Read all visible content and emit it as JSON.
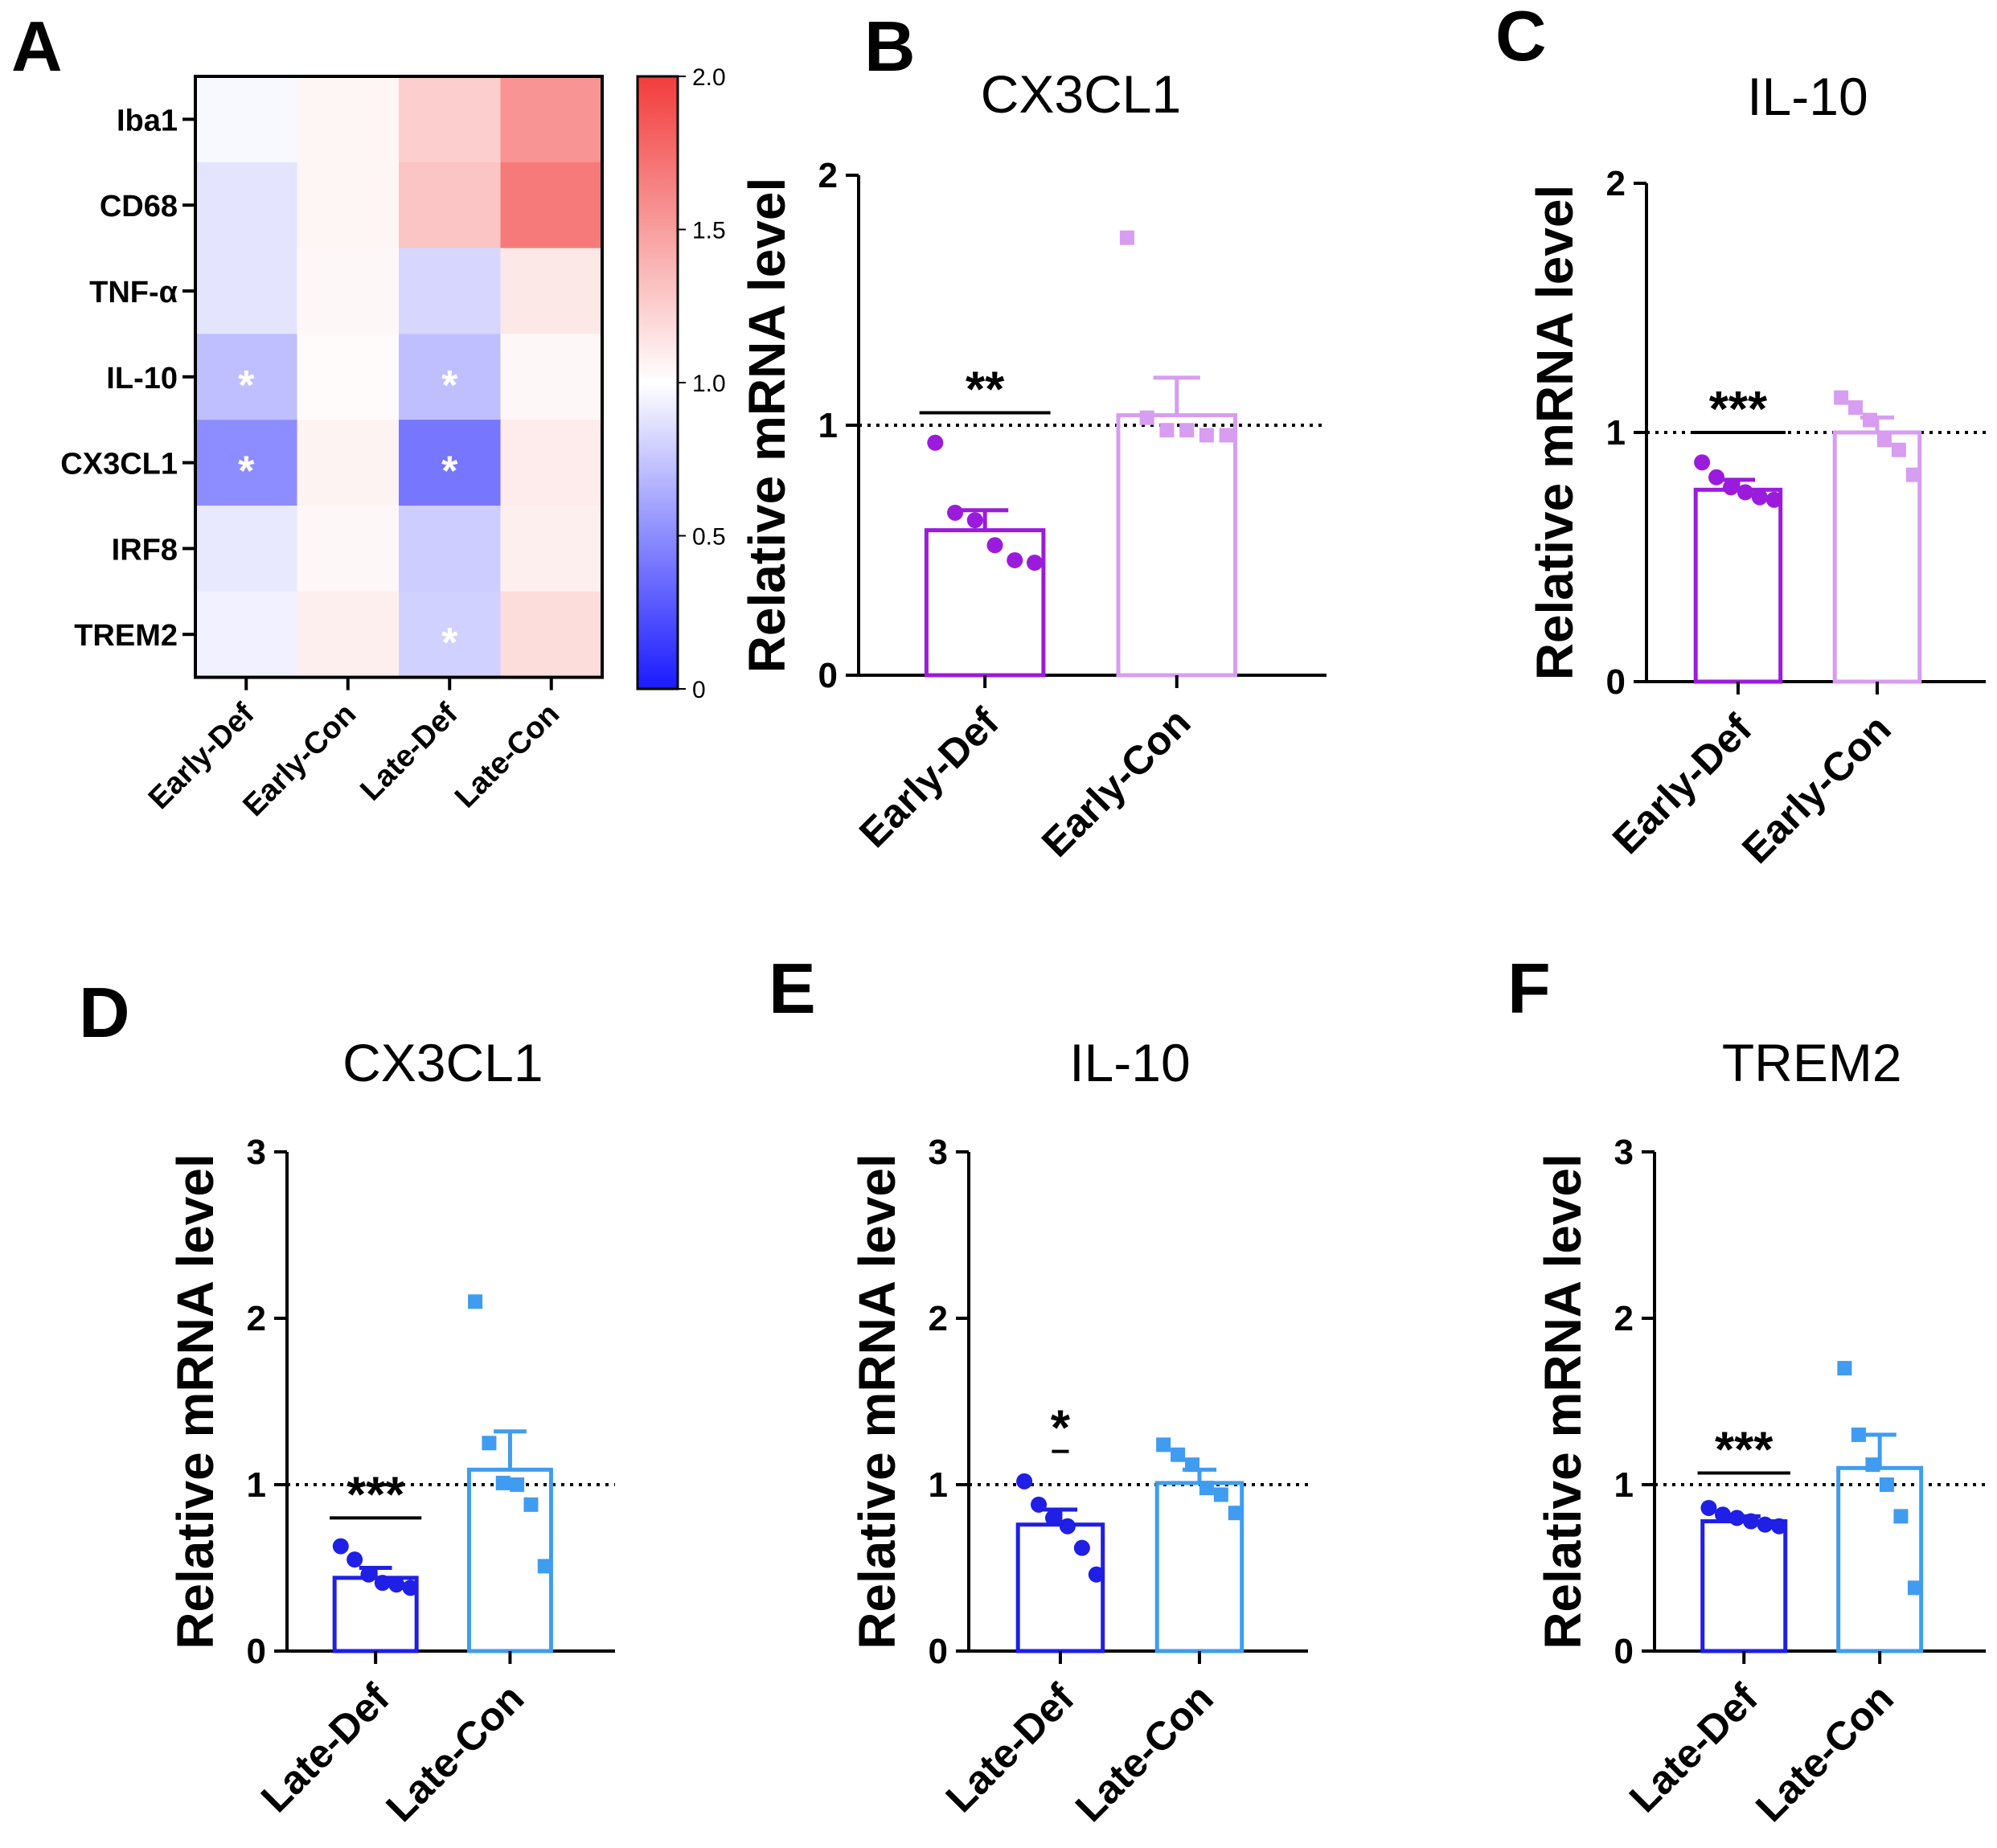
{
  "panelA": {
    "letter": "A",
    "rows": [
      "Iba1",
      "CD68",
      "TNF-α",
      "IL-10",
      "CX3CL1",
      "IRF8",
      "TREM2"
    ],
    "cols": [
      "Early-Def",
      "Early-Con",
      "Late-Def",
      "Late-Con"
    ],
    "values": [
      [
        0.97,
        1.05,
        1.25,
        1.55
      ],
      [
        0.88,
        1.05,
        1.3,
        1.68
      ],
      [
        0.88,
        1.04,
        0.82,
        1.12
      ],
      [
        0.72,
        1.02,
        0.72,
        1.04
      ],
      [
        0.5,
        1.06,
        0.4,
        1.1
      ],
      [
        0.9,
        1.04,
        0.78,
        1.08
      ],
      [
        0.94,
        1.08,
        0.8,
        1.18
      ]
    ],
    "stars": [
      {
        "row": 3,
        "col": 0,
        "text": "*"
      },
      {
        "row": 3,
        "col": 2,
        "text": "*"
      },
      {
        "row": 4,
        "col": 0,
        "text": "*"
      },
      {
        "row": 4,
        "col": 2,
        "text": "*"
      },
      {
        "row": 6,
        "col": 2,
        "text": "*"
      }
    ],
    "colorbar": {
      "min": 0,
      "max": 2.0,
      "ticks": [
        "2.0",
        "1.5",
        "1.0",
        "0.5",
        "0"
      ],
      "tick_values": [
        2.0,
        1.5,
        1.0,
        0.5,
        0
      ],
      "low_color": "#1a1aff",
      "mid_color": "#ffffff",
      "high_color": "#f23c3c"
    }
  },
  "chart_data": [
    {
      "panel": "B",
      "type": "bar",
      "title": "CX3CL1",
      "ylabel": "Relative mRNA level",
      "ylim": [
        0,
        2
      ],
      "yticks": [
        "0",
        "1",
        "2"
      ],
      "ytick_values": [
        0,
        1,
        2
      ],
      "reference_line": 1,
      "categories": [
        "Early-Def",
        "Early-Con"
      ],
      "means": [
        0.58,
        1.04
      ],
      "sems": [
        0.08,
        0.15
      ],
      "points": [
        [
          0.93,
          0.65,
          0.62,
          0.52,
          0.46,
          0.45
        ],
        [
          1.75,
          1.03,
          0.98,
          0.98,
          0.96,
          0.96
        ]
      ],
      "colors": [
        "#9b1bdc",
        "#d79df0"
      ],
      "markers": [
        "circle",
        "square"
      ],
      "significance": {
        "text": "**",
        "bar_y": 1.05
      }
    },
    {
      "panel": "C",
      "type": "bar",
      "title": "IL-10",
      "ylabel": "Relative mRNA level",
      "ylim": [
        0,
        2
      ],
      "yticks": [
        "0",
        "1",
        "2"
      ],
      "ytick_values": [
        0,
        1,
        2
      ],
      "reference_line": 1,
      "categories": [
        "Early-Def",
        "Early-Con"
      ],
      "means": [
        0.77,
        1.0
      ],
      "sems": [
        0.04,
        0.06
      ],
      "points": [
        [
          0.88,
          0.82,
          0.78,
          0.76,
          0.74,
          0.73
        ],
        [
          1.14,
          1.1,
          1.05,
          0.97,
          0.93,
          0.83
        ]
      ],
      "colors": [
        "#9b1bdc",
        "#d79df0"
      ],
      "markers": [
        "circle",
        "square"
      ],
      "significance": {
        "text": "***",
        "bar_y": 1.0
      }
    },
    {
      "panel": "D",
      "type": "bar",
      "title": "CX3CL1",
      "ylabel": "Relative mRNA level",
      "ylim": [
        0,
        3
      ],
      "yticks": [
        "0",
        "1",
        "2",
        "3"
      ],
      "ytick_values": [
        0,
        1,
        2,
        3
      ],
      "reference_line": 1,
      "categories": [
        "Late-Def",
        "Late-Con"
      ],
      "means": [
        0.44,
        1.09
      ],
      "sems": [
        0.06,
        0.23
      ],
      "points": [
        [
          0.63,
          0.55,
          0.46,
          0.41,
          0.4,
          0.38
        ],
        [
          2.1,
          1.25,
          1.01,
          1.0,
          0.88,
          0.51
        ]
      ],
      "colors": [
        "#1f1fe6",
        "#3f9cf0"
      ],
      "markers": [
        "circle",
        "square"
      ],
      "significance": {
        "text": "***",
        "bar_y": 0.8
      }
    },
    {
      "panel": "E",
      "type": "bar",
      "title": "IL-10",
      "ylabel": "Relative mRNA level",
      "ylim": [
        0,
        3
      ],
      "yticks": [
        "0",
        "1",
        "2",
        "3"
      ],
      "ytick_values": [
        0,
        1,
        2,
        3
      ],
      "reference_line": 1,
      "categories": [
        "Late-Def",
        "Late-Con"
      ],
      "means": [
        0.76,
        1.01
      ],
      "sems": [
        0.09,
        0.08
      ],
      "points": [
        [
          1.02,
          0.88,
          0.8,
          0.75,
          0.62,
          0.46
        ],
        [
          1.24,
          1.18,
          1.12,
          0.98,
          0.94,
          0.83
        ]
      ],
      "colors": [
        "#1f1fe6",
        "#3f9cf0"
      ],
      "markers": [
        "circle",
        "square"
      ],
      "significance": {
        "text": "*",
        "bar_y": 1.2
      }
    },
    {
      "panel": "F",
      "type": "bar",
      "title": "TREM2",
      "ylabel": "Relative mRNA level",
      "ylim": [
        0,
        3
      ],
      "yticks": [
        "0",
        "1",
        "2",
        "3"
      ],
      "ytick_values": [
        0,
        1,
        2,
        3
      ],
      "reference_line": 1,
      "categories": [
        "Late-Def",
        "Late-Con"
      ],
      "means": [
        0.78,
        1.1
      ],
      "sems": [
        0.03,
        0.2
      ],
      "points": [
        [
          0.86,
          0.82,
          0.8,
          0.78,
          0.76,
          0.75
        ],
        [
          1.7,
          1.3,
          1.12,
          1.0,
          0.81,
          0.38
        ]
      ],
      "colors": [
        "#1f1fe6",
        "#3f9cf0"
      ],
      "markers": [
        "circle",
        "square"
      ],
      "significance": {
        "text": "***",
        "bar_y": 1.07
      }
    }
  ]
}
